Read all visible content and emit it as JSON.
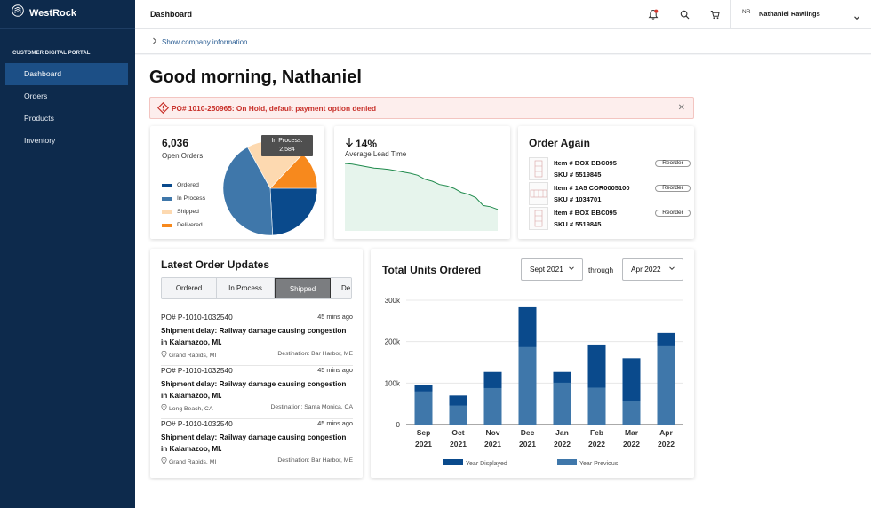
{
  "brand": {
    "name": "WestRock"
  },
  "sidebar": {
    "portal_label": "CUSTOMER DIGITAL PORTAL",
    "items": [
      {
        "label": "Dashboard",
        "active": true
      },
      {
        "label": "Orders",
        "active": false
      },
      {
        "label": "Products",
        "active": false
      },
      {
        "label": "Inventory",
        "active": false
      }
    ]
  },
  "header": {
    "title": "Dashboard",
    "user_initials": "NR",
    "user_name": "Nathaniel Rawlings",
    "icons": [
      "notification-bell-icon",
      "search-icon",
      "cart-icon",
      "chevron-down-icon"
    ],
    "notification_dot_color": "#d9372f"
  },
  "company_link": "Show company information",
  "greeting": "Good morning, Nathaniel",
  "alert": {
    "text": "PO# 1010-250965: On Hold, default payment option denied",
    "color": "#c8302a"
  },
  "open_orders": {
    "count": "6,036",
    "label": "Open Orders",
    "tooltip_title": "In Process:",
    "tooltip_value": "2,584",
    "legend": [
      {
        "label": "Ordered",
        "color": "#0a4a8c"
      },
      {
        "label": "In Process",
        "color": "#3f77aa"
      },
      {
        "label": "Shipped",
        "color": "#fdd9b0"
      },
      {
        "label": "Delivered",
        "color": "#f7891d"
      }
    ]
  },
  "lead_time": {
    "value": "14%",
    "label": "Average Lead Time",
    "trend": "down"
  },
  "order_again": {
    "title": "Order Again",
    "items": [
      {
        "item_label": "Item #",
        "item": "BOX BBC095",
        "sku_label": "SKU #",
        "sku": "5519845",
        "button": "Reorder"
      },
      {
        "item_label": "Item #",
        "item": "1A5 COR0005100",
        "sku_label": "SKU #",
        "sku": "1034701",
        "button": "Reorder"
      },
      {
        "item_label": "Item #",
        "item": "BOX BBC095",
        "sku_label": "SKU #",
        "sku": "5519845",
        "button": "Reorder"
      }
    ]
  },
  "latest_updates": {
    "title": "Latest Order Updates",
    "tabs": [
      {
        "label": "Ordered",
        "active": false
      },
      {
        "label": "In Process",
        "active": false
      },
      {
        "label": "Shipped",
        "active": true
      },
      {
        "label": "De",
        "active": false
      }
    ],
    "updates": [
      {
        "po": "PO# P-1010-1032540",
        "time": "45 mins ago",
        "message": "Shipment delay: Railway damage causing congestion in Kalamazoo, MI.",
        "location": "Grand Rapids, MI",
        "destination": "Destination: Bar Harbor, ME"
      },
      {
        "po": "PO# P-1010-1032540",
        "time": "45 mins ago",
        "message": "Shipment delay: Railway damage causing congestion in Kalamazoo, MI.",
        "location": "Long Beach, CA",
        "destination": "Destination: Santa Monica, CA"
      },
      {
        "po": "PO# P-1010-1032540",
        "time": "45 mins ago",
        "message": "Shipment delay: Railway damage causing congestion in Kalamazoo, MI.",
        "location": "Grand Rapids, MI",
        "destination": "Destination: Bar Harbor, ME"
      }
    ]
  },
  "total_units": {
    "title": "Total Units Ordered",
    "from": "Sept 2021",
    "through_label": "through",
    "to": "Apr 2022"
  },
  "chart_data": [
    {
      "type": "pie",
      "title": "",
      "categories": [
        "Ordered",
        "In Process",
        "Shipped",
        "Delivered"
      ],
      "values": [
        1460,
        2584,
        1213,
        779
      ],
      "colors": [
        "#0a4a8c",
        "#3f77aa",
        "#fdd9b0",
        "#f7891d"
      ]
    },
    {
      "type": "area",
      "title": "Average Lead Time",
      "values": [
        100,
        99,
        97,
        95,
        93,
        92,
        91,
        89,
        87,
        85,
        82,
        76,
        73,
        68,
        66,
        62,
        56,
        53,
        48,
        36,
        34,
        30
      ],
      "color": "#1f8a4c",
      "fill": "#e6f4ec"
    },
    {
      "type": "bar",
      "title": "Total Units Ordered",
      "categories": [
        "Sep 2021",
        "Oct 2021",
        "Nov 2021",
        "Dec 2021",
        "Jan 2022",
        "Feb 2022",
        "Mar 2022",
        "Apr 2022"
      ],
      "series": [
        {
          "name": "Year Displayed",
          "values": [
            95,
            70,
            127,
            283,
            127,
            193,
            160,
            221
          ],
          "color": "#0a4a8c"
        },
        {
          "name": "Year Previous",
          "values": [
            80,
            46,
            88,
            187,
            101,
            89,
            56,
            189
          ],
          "color": "#3f77aa"
        }
      ],
      "yticks": [
        "0",
        "100k",
        "200k",
        "300k"
      ],
      "ylim": [
        0,
        300
      ],
      "grid": true,
      "legend_position": "bottom"
    }
  ]
}
